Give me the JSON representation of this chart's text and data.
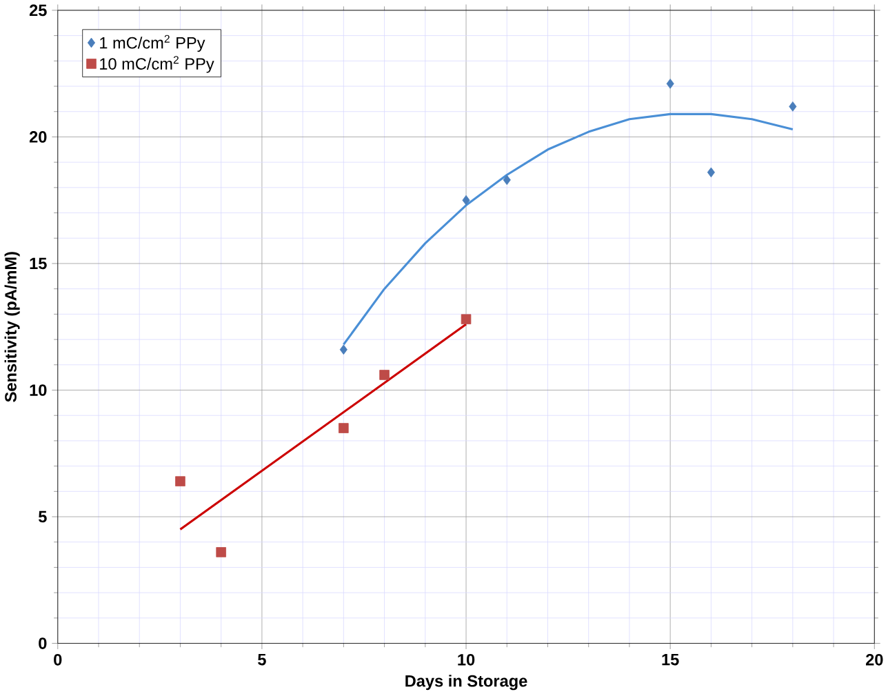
{
  "chart_data": {
    "type": "scatter",
    "xlabel": "Days in Storage",
    "ylabel": "Sensitivity (pA/mM)",
    "xlim": [
      0,
      20
    ],
    "xticks": [
      0,
      5,
      10,
      15,
      20
    ],
    "ylim": [
      0,
      25
    ],
    "yticks": [
      0,
      5,
      10,
      15,
      20,
      25
    ],
    "grid": true,
    "legend": "top left",
    "series": [
      {
        "name": "1 mC/cm$^{2}$ PPy",
        "color": "#4a7ebb",
        "marker": "diamond",
        "x": [
          7,
          10,
          11,
          15,
          16,
          18
        ],
        "values": [
          11.6,
          17.5,
          18.3,
          22.1,
          18.6,
          21.2
        ]
      },
      {
        "name": "10 mC/cm$^{2}$ PPy",
        "color": "#be4b48",
        "marker": "square",
        "x": [
          3,
          4,
          7,
          8,
          10
        ],
        "values": [
          6.4,
          3.6,
          8.5,
          10.6,
          12.8
        ]
      },
      {
        "type": "line",
        "color": "#4a8fd6",
        "x": [
          7,
          8,
          9,
          10,
          11,
          12,
          13,
          14,
          15,
          16,
          17,
          18
        ],
        "values": [
          11.8,
          14.0,
          15.8,
          17.3,
          18.5,
          19.5,
          20.2,
          20.7,
          20.9,
          20.9,
          20.7,
          20.3
        ]
      },
      {
        "type": "line",
        "color": "#cc0000",
        "x": [
          3,
          10
        ],
        "values": [
          4.5,
          12.6
        ]
      }
    ]
  }
}
